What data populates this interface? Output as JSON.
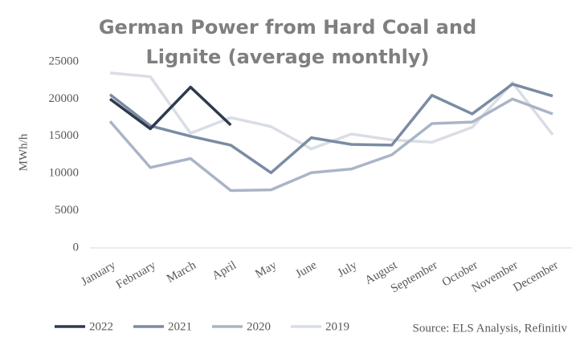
{
  "chart_data": {
    "type": "line",
    "title": [
      "German Power from Hard Coal and",
      "Lignite (average monthly)"
    ],
    "y_label": "MWh/h",
    "source": "Source: ELS Analysis, Refinitiv",
    "categories": [
      "January",
      "February",
      "March",
      "April",
      "May",
      "June",
      "July",
      "August",
      "September",
      "October",
      "November",
      "December"
    ],
    "series": [
      {
        "name": "2022",
        "color": "#2e3a4e",
        "values": [
          20000,
          16000,
          21600,
          16500,
          null,
          null,
          null,
          null,
          null,
          null,
          null,
          null
        ]
      },
      {
        "name": "2021",
        "color": "#7b8ba3",
        "values": [
          20600,
          16400,
          15000,
          13800,
          10100,
          14800,
          13900,
          13800,
          20500,
          18000,
          22000,
          20400
        ]
      },
      {
        "name": "2020",
        "color": "#a9b5c6",
        "values": [
          17000,
          10800,
          12000,
          7700,
          7800,
          10100,
          10600,
          12500,
          16700,
          16900,
          20000,
          18000
        ]
      },
      {
        "name": "2019",
        "color": "#d9dde5",
        "values": [
          23500,
          23000,
          15400,
          17500,
          16300,
          13300,
          15300,
          14500,
          14200,
          16200,
          22200,
          15200
        ]
      }
    ],
    "ylim": [
      0,
      25000
    ],
    "yticks": [
      0,
      5000,
      10000,
      15000,
      20000,
      25000
    ],
    "grid": false,
    "legend": "bottom"
  }
}
